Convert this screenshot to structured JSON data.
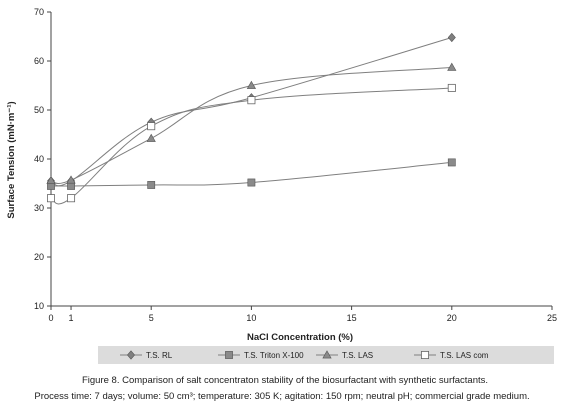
{
  "chart_data": {
    "type": "line",
    "xlabel": "NaCl Concentration (%)",
    "ylabel": "Surface Tension (mN·m⁻¹)",
    "xlim": [
      0,
      25
    ],
    "ylim": [
      10,
      70
    ],
    "x_ticks": [
      0,
      1,
      5,
      10,
      15,
      20,
      25
    ],
    "y_ticks": [
      10,
      20,
      30,
      40,
      50,
      60,
      70
    ],
    "grid": false,
    "legend_position": "bottom",
    "x": [
      0,
      1,
      5,
      10,
      20
    ],
    "series": [
      {
        "name": "T.S. RL",
        "marker": "diamond",
        "color": "#7f7f7f",
        "values": [
          35.5,
          35.5,
          47.5,
          52.5,
          64.8
        ]
      },
      {
        "name": "T.S. Triton X-100",
        "marker": "square",
        "color": "#7f7f7f",
        "values": [
          34.5,
          34.5,
          34.7,
          35.2,
          39.3
        ]
      },
      {
        "name": "T.S. LAS",
        "marker": "triangle",
        "color": "#7f7f7f",
        "values": [
          35.6,
          35.7,
          44.2,
          55.0,
          58.7
        ]
      },
      {
        "name": "T.S. LAS com",
        "marker": "open-square",
        "color": "#7f7f7f",
        "values": [
          32.0,
          32.0,
          46.7,
          52.0,
          54.5
        ]
      }
    ]
  },
  "caption": {
    "line1": "Figure 8. Comparison of salt concentraton stability of the biosurfactant with synthetic surfactants.",
    "line2": "Process time: 7 days; volume: 50 cm³; temperature: 305 K; agitation: 150 rpm; neutral pH; commercial grade medium."
  }
}
